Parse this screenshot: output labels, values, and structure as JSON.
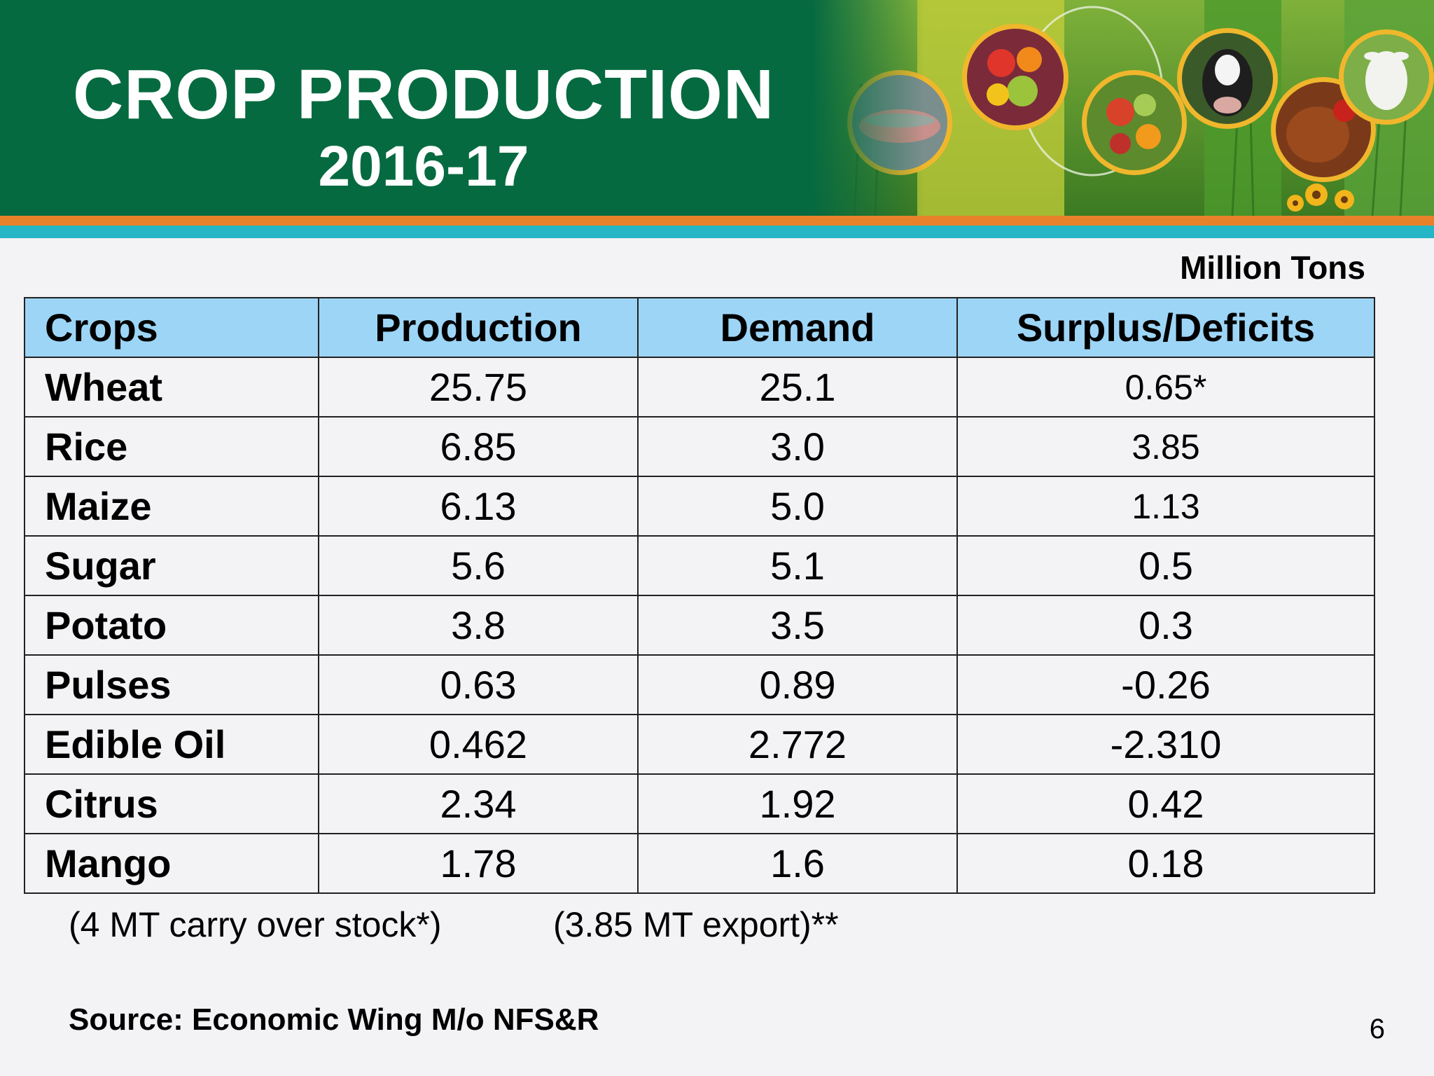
{
  "banner": {
    "title": "CROP PRODUCTION",
    "subtitle": "2016-17"
  },
  "units": "Million Tons",
  "table": {
    "headers": [
      "Crops",
      "Production",
      "Demand",
      "Surplus/Deficits"
    ],
    "rows": [
      {
        "crop": "Wheat",
        "production": "25.75",
        "demand": "25.1",
        "surplus": "0.65*"
      },
      {
        "crop": "Rice",
        "production": "6.85",
        "demand": "3.0",
        "surplus": "3.85"
      },
      {
        "crop": "Maize",
        "production": "6.13",
        "demand": "5.0",
        "surplus": "1.13"
      },
      {
        "crop": "Sugar",
        "production": "5.6",
        "demand": "5.1",
        "surplus": "0.5"
      },
      {
        "crop": "Potato",
        "production": "3.8",
        "demand": "3.5",
        "surplus": "0.3"
      },
      {
        "crop": "Pulses",
        "production": "0.63",
        "demand": "0.89",
        "surplus": "-0.26"
      },
      {
        "crop": "Edible Oil",
        "production": "0.462",
        "demand": "2.772",
        "surplus": "-2.310"
      },
      {
        "crop": "Citrus",
        "production": "2.34",
        "demand": "1.92",
        "surplus": "0.42"
      },
      {
        "crop": "Mango",
        "production": "1.78",
        "demand": "1.6",
        "surplus": "0.18"
      }
    ]
  },
  "footnotes": {
    "carry_over": "(4 MT carry over stock*)",
    "export": "(3.85 MT export)**"
  },
  "source": "Source: Economic Wing M/o NFS&R",
  "page_number": "6",
  "colors": {
    "banner_green": "#066a40",
    "stripe_orange": "#e8822a",
    "stripe_teal": "#24b6c6",
    "header_blue": "#9dd5f6"
  }
}
